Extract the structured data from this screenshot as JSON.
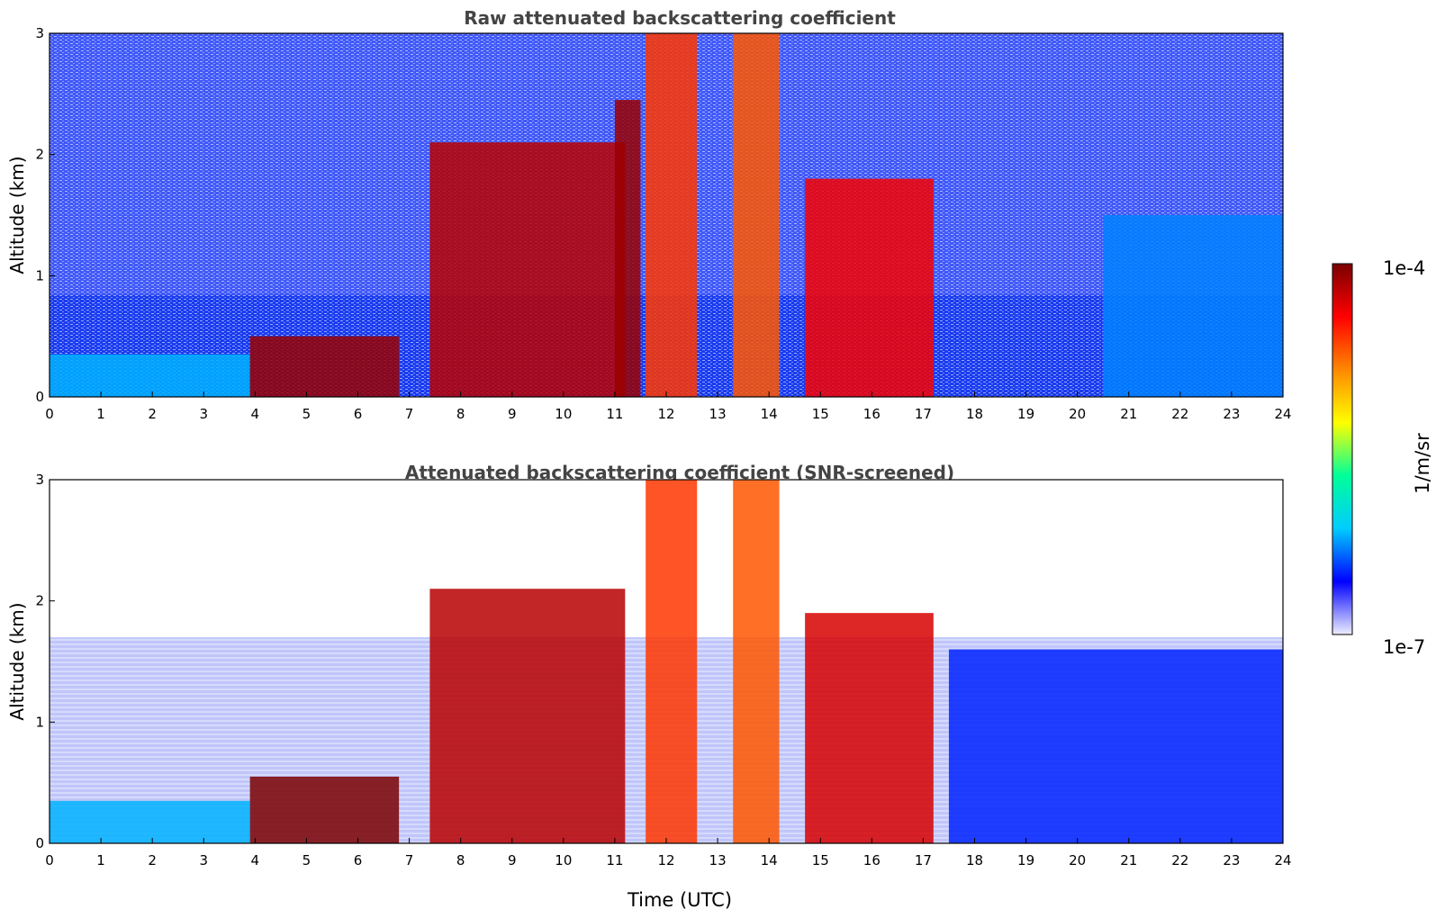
{
  "chart_data": [
    {
      "type": "heatmap",
      "title": "Raw attenuated backscattering coefficient",
      "xlabel": "",
      "ylabel": "Altitude (km)",
      "xlim": [
        0,
        24
      ],
      "ylim": [
        0,
        3
      ],
      "xticks": [
        "0",
        "1",
        "2",
        "3",
        "4",
        "5",
        "6",
        "7",
        "8",
        "9",
        "10",
        "11",
        "12",
        "13",
        "14",
        "15",
        "16",
        "17",
        "18",
        "19",
        "20",
        "21",
        "22",
        "23",
        "24"
      ],
      "yticks": [
        "0",
        "1",
        "2",
        "3"
      ],
      "features": [
        {
          "time_start": 0,
          "time_end": 3.9,
          "altitude_top_km": 0.35,
          "log10_value": -6.2
        },
        {
          "time_start": 3.9,
          "time_end": 6.8,
          "altitude_top_km": 0.5,
          "log10_value": -4.1
        },
        {
          "time_start": 7.4,
          "time_end": 11.2,
          "altitude_top_km": 2.1,
          "log10_value": -4.2
        },
        {
          "time_start": 11.0,
          "time_end": 11.5,
          "altitude_top_km": 2.45,
          "log10_value": -4.1
        },
        {
          "time_start": 11.6,
          "time_end": 12.6,
          "altitude_top_km": 3.0,
          "log10_value": -4.6
        },
        {
          "time_start": 13.3,
          "time_end": 14.2,
          "altitude_top_km": 3.0,
          "log10_value": -4.7
        },
        {
          "time_start": 14.7,
          "time_end": 17.2,
          "altitude_top_km": 1.8,
          "log10_value": -4.4
        },
        {
          "time_start": 20.5,
          "time_end": 24,
          "altitude_top_km": 1.5,
          "log10_value": -6.3
        }
      ]
    },
    {
      "type": "heatmap",
      "title": "Attenuated backscattering coefficient (SNR-screened)",
      "xlabel": "Time (UTC)",
      "ylabel": "Altitude (km)",
      "xlim": [
        0,
        24
      ],
      "ylim": [
        0,
        3
      ],
      "xticks": [
        "0",
        "1",
        "2",
        "3",
        "4",
        "5",
        "6",
        "7",
        "8",
        "9",
        "10",
        "11",
        "12",
        "13",
        "14",
        "15",
        "16",
        "17",
        "18",
        "19",
        "20",
        "21",
        "22",
        "23",
        "24"
      ],
      "yticks": [
        "0",
        "1",
        "2",
        "3"
      ],
      "features": [
        {
          "time_start": 0,
          "time_end": 3.9,
          "altitude_top_km": 0.35,
          "log10_value": -6.2
        },
        {
          "time_start": 3.9,
          "time_end": 6.8,
          "altitude_top_km": 0.55,
          "log10_value": -4.0
        },
        {
          "time_start": 7.4,
          "time_end": 11.2,
          "altitude_top_km": 2.1,
          "log10_value": -4.2
        },
        {
          "time_start": 11.6,
          "time_end": 12.6,
          "altitude_top_km": 3.0,
          "log10_value": -4.6
        },
        {
          "time_start": 13.3,
          "time_end": 14.2,
          "altitude_top_km": 3.0,
          "log10_value": -4.7
        },
        {
          "time_start": 14.7,
          "time_end": 17.2,
          "altitude_top_km": 1.9,
          "log10_value": -4.3
        },
        {
          "time_start": 17.5,
          "time_end": 24,
          "altitude_top_km": 1.6,
          "log10_value": -6.5
        }
      ]
    }
  ],
  "colorbar": {
    "label": "1/m/sr",
    "max_label": "1e-4",
    "min_label": "1e-7",
    "colormap": "jet",
    "scale": "log",
    "stops": [
      "#eeeeff",
      "#0000ff",
      "#00ccff",
      "#00ff99",
      "#ffff00",
      "#ff8800",
      "#ff0000",
      "#7a0000"
    ]
  }
}
